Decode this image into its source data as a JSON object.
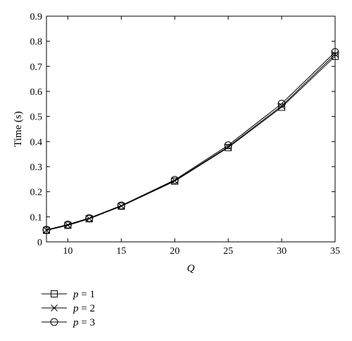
{
  "chart_data": {
    "type": "line",
    "xlabel": "Q",
    "ylabel": "Time (s)",
    "xlim": [
      8,
      35
    ],
    "ylim": [
      0,
      0.9
    ],
    "xticks": [
      "10",
      "15",
      "20",
      "25",
      "30",
      "35"
    ],
    "yticks": [
      "0",
      "0.1",
      "0.2",
      "0.3",
      "0.4",
      "0.5",
      "0.6",
      "0.7",
      "0.8",
      "0.9"
    ],
    "grid": false,
    "legend_position": "bottom-left outside",
    "x": [
      8,
      10,
      12,
      15,
      20,
      25,
      30,
      35
    ],
    "series": [
      {
        "var": "p",
        "eq": "= 1",
        "marker": "square",
        "values": [
          0.046,
          0.066,
          0.092,
          0.142,
          0.242,
          0.376,
          0.537,
          0.74
        ]
      },
      {
        "var": "p",
        "eq": "= 2",
        "marker": "x",
        "values": [
          0.047,
          0.067,
          0.093,
          0.143,
          0.244,
          0.379,
          0.542,
          0.748
        ]
      },
      {
        "var": "p",
        "eq": "= 3",
        "marker": "circle",
        "values": [
          0.048,
          0.069,
          0.095,
          0.145,
          0.247,
          0.385,
          0.551,
          0.757
        ]
      }
    ]
  }
}
